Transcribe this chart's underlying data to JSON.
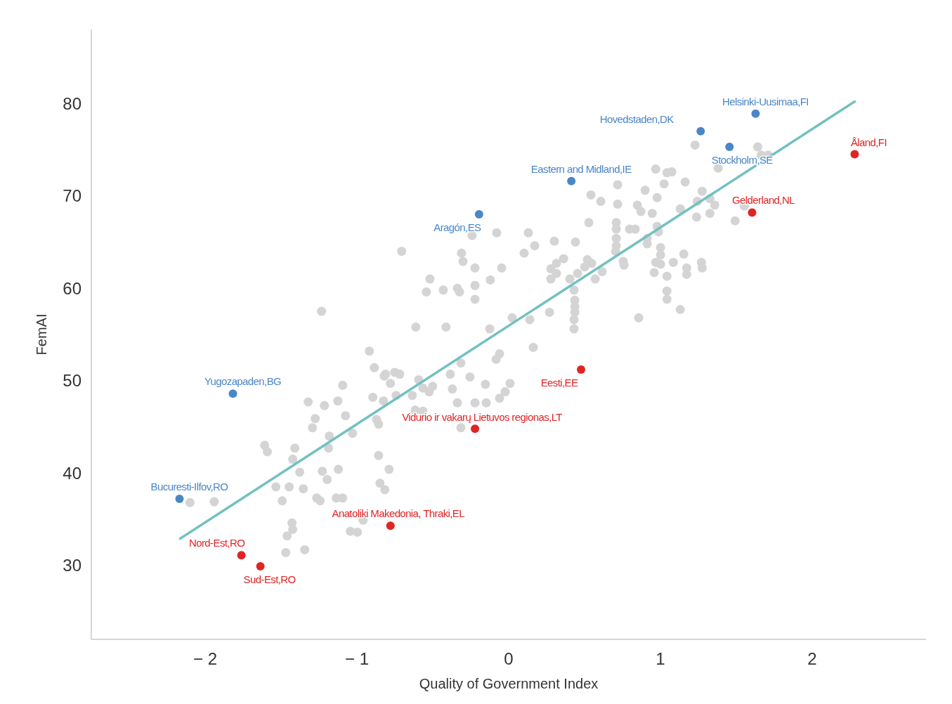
{
  "chart_data": {
    "type": "scatter",
    "xlabel": "Quality of Government Index",
    "ylabel": "FemAI",
    "xlim": [
      -2.75,
      2.75
    ],
    "ylim": [
      22,
      88
    ],
    "xticks": [
      {
        "value": -2,
        "label": "− 2"
      },
      {
        "value": -1,
        "label": "− 1"
      },
      0,
      1,
      2
    ],
    "yticks": [
      30,
      40,
      50,
      60,
      70,
      80
    ],
    "marker": "circle",
    "series": [
      {
        "color": "#d4d4d4",
        "x": [
          -2.1,
          -1.94,
          -1.233,
          -0.918,
          -0.885,
          -0.82,
          -0.751,
          -0.779,
          -1.094,
          -0.895,
          -0.825,
          -1.321,
          -1.214,
          -1.126,
          -1.075,
          -1.275,
          -1.293,
          -1.182,
          -1.029,
          -1.187,
          -1.608,
          -1.59,
          -1.409,
          -1.423,
          -0.857,
          -1.122,
          -0.788,
          -1.377,
          -1.228,
          -1.196,
          -0.848,
          -0.816,
          -1.534,
          -1.446,
          -1.353,
          -1.492,
          -1.265,
          -1.242,
          -1.136,
          -1.094,
          -0.959,
          -1.043,
          -0.997,
          -1.428,
          -1.423,
          -1.46,
          -1.469,
          -1.344,
          -0.241,
          -0.079,
          0.13,
          0.528,
          0.709,
          0.709,
          0.797,
          0.834,
          0.301,
          0.44,
          0.171,
          0.102,
          -0.705,
          -0.311,
          -0.301,
          -0.222,
          -0.046,
          0.362,
          0.315,
          0.278,
          0.315,
          0.278,
          0.519,
          0.547,
          0.501,
          0.616,
          0.454,
          0.403,
          0.57,
          0.709,
          0.709,
          0.705,
          0.755,
          -0.519,
          -0.542,
          -0.431,
          -0.338,
          -0.324,
          -0.222,
          -0.222,
          -0.121,
          0.431,
          0.436,
          0.436,
          0.436,
          0.431,
          0.431,
          0.269,
          0.139,
          0.023,
          0.857,
          -0.612,
          -0.413,
          -0.125,
          0.162,
          -0.06,
          -0.083,
          -0.315,
          -0.811,
          -0.718,
          -0.593,
          -0.565,
          -0.524,
          -0.501,
          -0.635,
          -0.385,
          -0.255,
          -0.371,
          -0.153,
          0.009,
          -0.023,
          -0.06,
          -0.742,
          -0.338,
          -0.222,
          -0.148,
          -0.616,
          -0.565,
          -0.871,
          -0.857,
          -0.315,
          1.228,
          1.641,
          1.664,
          1.381,
          1.71,
          0.969,
          1.043,
          1.075,
          1.024,
          1.163,
          0.718,
          0.899,
          0.978,
          0.542,
          0.607,
          0.718,
          0.848,
          0.871,
          0.946,
          1.131,
          1.275,
          1.242,
          1.326,
          1.358,
          1.326,
          1.238,
          1.492,
          1.553,
          0.978,
          0.987,
          0.913,
          0.913,
          1.001,
          1.001,
          0.969,
          1.001,
          0.959,
          1.154,
          1.173,
          1.173,
          1.27,
          1.275,
          1.085,
          1.043,
          1.043,
          1.043,
          1.131,
          0.76
        ],
        "values": [
          36.8,
          36.9,
          57.5,
          53.2,
          51.4,
          50.5,
          50.9,
          49.7,
          49.5,
          48.2,
          47.8,
          47.7,
          47.3,
          47.8,
          46.2,
          45.9,
          44.9,
          44.0,
          44.3,
          42.7,
          43.0,
          42.3,
          42.7,
          41.5,
          41.9,
          40.4,
          40.4,
          40.1,
          40.2,
          39.3,
          38.9,
          38.2,
          38.5,
          38.5,
          38.3,
          37.0,
          37.3,
          37.0,
          37.3,
          37.3,
          34.9,
          33.7,
          33.6,
          34.6,
          33.9,
          33.2,
          31.4,
          31.7,
          65.7,
          66.0,
          66.0,
          67.1,
          67.1,
          66.4,
          66.4,
          66.4,
          65.1,
          65.0,
          64.6,
          63.8,
          64.0,
          63.8,
          62.9,
          62.2,
          62.2,
          63.2,
          62.7,
          62.1,
          61.6,
          61.0,
          63.1,
          62.7,
          62.3,
          61.8,
          61.6,
          61.0,
          61.0,
          65.4,
          64.6,
          64.0,
          62.9,
          61.0,
          59.6,
          59.8,
          60.0,
          59.6,
          60.3,
          58.8,
          60.9,
          59.8,
          58.7,
          58.0,
          57.4,
          56.6,
          55.6,
          57.4,
          56.6,
          56.8,
          56.8,
          55.8,
          55.8,
          55.6,
          53.6,
          52.9,
          52.3,
          51.9,
          50.7,
          50.7,
          50.1,
          49.2,
          48.8,
          49.4,
          48.4,
          50.7,
          50.4,
          49.1,
          49.6,
          49.7,
          48.8,
          48.1,
          48.4,
          47.6,
          47.6,
          47.6,
          46.8,
          46.7,
          45.8,
          45.3,
          44.9,
          75.5,
          75.3,
          74.4,
          73.0,
          74.4,
          72.9,
          72.5,
          72.6,
          71.3,
          71.5,
          71.2,
          70.6,
          69.8,
          70.1,
          69.4,
          69.1,
          69.0,
          68.3,
          68.1,
          68.6,
          70.5,
          69.4,
          69.7,
          69.0,
          68.1,
          67.7,
          67.3,
          68.9,
          66.7,
          66.1,
          65.4,
          64.8,
          64.4,
          63.6,
          62.8,
          62.6,
          61.7,
          63.7,
          62.2,
          61.5,
          62.8,
          62.2,
          62.8,
          61.3,
          59.7,
          58.8,
          57.7,
          62.5
        ]
      },
      {
        "type": "line",
        "marker": "none",
        "color": "#72c1c0",
        "x": [
          -2.165,
          2.28
        ],
        "values": [
          32.9,
          80.2
        ]
      },
      {
        "type": "scatter",
        "name": "Helsinki-Uusimaa,FI",
        "color": "#4a86c8",
        "x": [
          1.627
        ],
        "values": [
          78.9
        ]
      },
      {
        "type": "scatter",
        "name": "Hovedstaden,DK",
        "color": "#4a86c8",
        "x": [
          1.265
        ],
        "values": [
          77.0
        ]
      },
      {
        "type": "scatter",
        "name": "Stockholm,SE",
        "color": "#4a86c8",
        "x": [
          1.455
        ],
        "values": [
          75.3
        ]
      },
      {
        "type": "scatter",
        "name": "Eastern and Midland,IE",
        "color": "#4a86c8",
        "x": [
          0.413
        ],
        "values": [
          71.6
        ]
      },
      {
        "type": "scatter",
        "name": "Aragón,ES",
        "color": "#4a86c8",
        "x": [
          -0.195
        ],
        "values": [
          68.0
        ]
      },
      {
        "type": "scatter",
        "name": "Yugozapaden,BG",
        "color": "#4a86c8",
        "x": [
          -1.817
        ],
        "values": [
          48.6
        ]
      },
      {
        "type": "scatter",
        "name": "Bucuresti-Ilfov,RO",
        "color": "#4a86c8",
        "x": [
          -2.169
        ],
        "values": [
          37.2
        ]
      },
      {
        "type": "scatter",
        "name": "Åland,FI",
        "color": "#e02424",
        "x": [
          2.28
        ],
        "values": [
          74.5
        ]
      },
      {
        "type": "scatter",
        "name": "Gelderland,NL",
        "color": "#e02424",
        "x": [
          1.604
        ],
        "values": [
          68.2
        ]
      },
      {
        "type": "scatter",
        "name": "Eesti,EE",
        "color": "#e02424",
        "x": [
          0.477
        ],
        "values": [
          51.2
        ]
      },
      {
        "type": "scatter",
        "name": "Vidurio ir vakarų Lietuvos regionas,LT",
        "color": "#e02424",
        "x": [
          -0.222
        ],
        "values": [
          44.8
        ]
      },
      {
        "type": "scatter",
        "name": "Anatoliki Makedonia, Thraki,EL",
        "color": "#e02424",
        "x": [
          -0.779
        ],
        "values": [
          34.3
        ]
      },
      {
        "type": "scatter",
        "name": "Nord-Est,RO",
        "color": "#e02424",
        "x": [
          -1.761
        ],
        "values": [
          31.1
        ]
      },
      {
        "type": "scatter",
        "name": "Sud-Est,RO",
        "color": "#e02424",
        "x": [
          -1.636
        ],
        "values": [
          29.9
        ]
      }
    ]
  }
}
